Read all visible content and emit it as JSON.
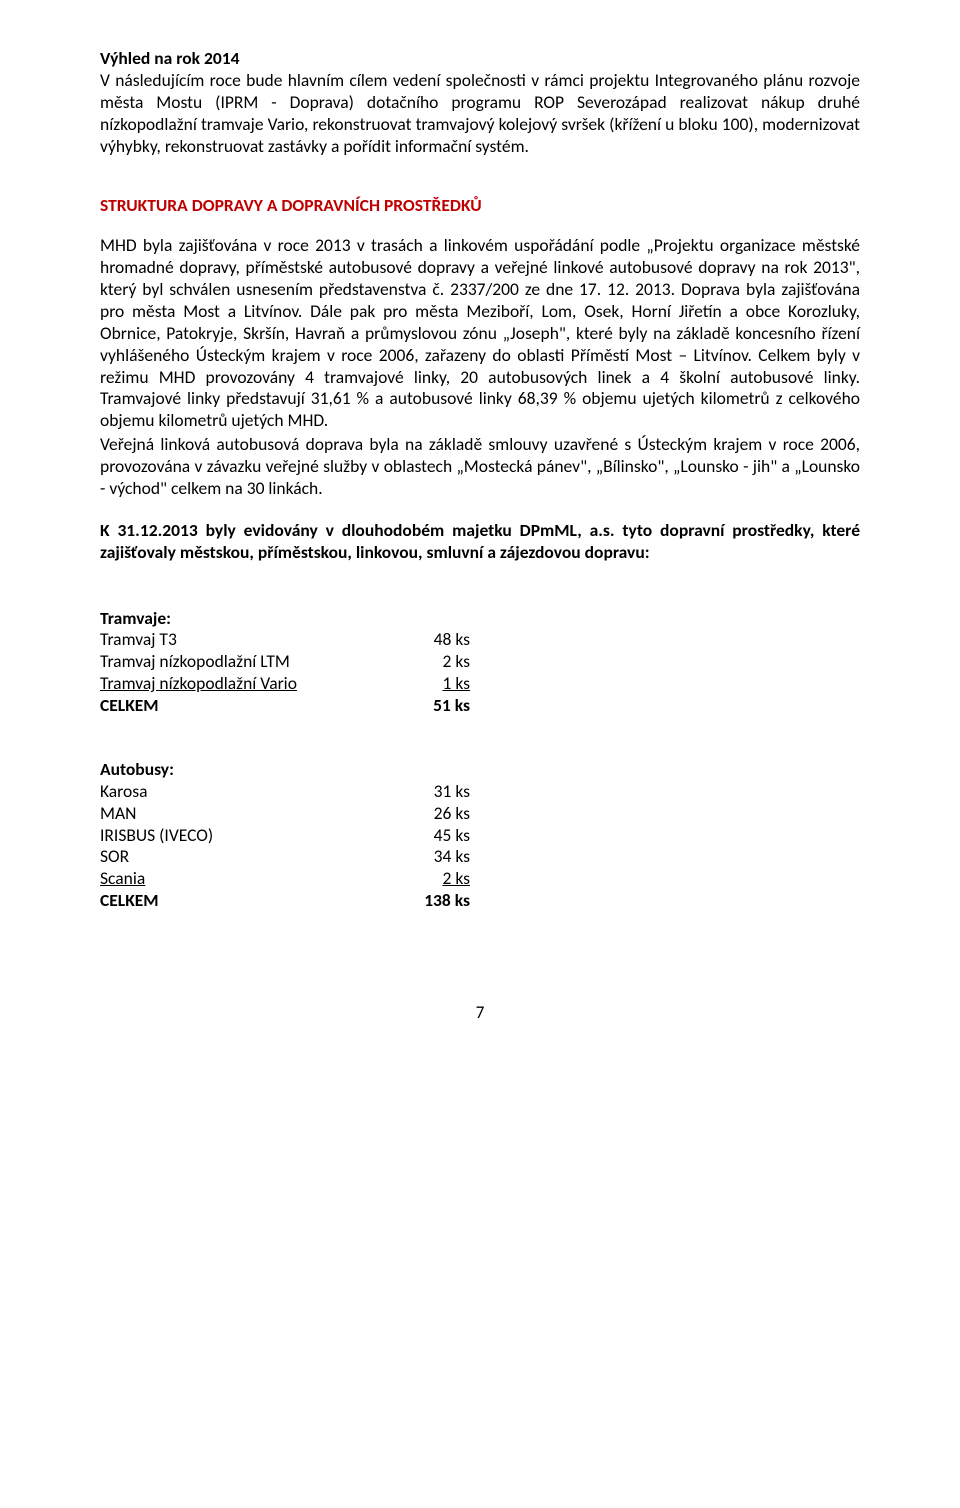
{
  "outlook": {
    "heading": "Výhled na rok 2014",
    "para": "V následujícím roce bude hlavním cílem vedení společnosti v rámci projektu Integrovaného plánu rozvoje města Mostu (IPRM - Doprava) dotačního programu ROP Severozápad realizovat nákup druhé nízkopodlažní tramvaje Vario, rekonstruovat tramvajový kolejový svršek (křížení u bloku 100), modernizovat výhybky, rekonstruovat zastávky a pořídit informační systém."
  },
  "structure": {
    "heading": "STRUKTURA DOPRAVY A DOPRAVNÍCH PROSTŘEDKŮ",
    "para1": "MHD byla zajišťována v roce 2013 v trasách a linkovém uspořádání podle „Projektu organizace městské hromadné dopravy, příměstské autobusové dopravy a veřejné linkové autobusové dopravy na rok 2013\", který byl schválen usnesením představenstva č. 2337/200 ze dne 17. 12. 2013. Doprava byla zajišťována pro města Most a Litvínov. Dále pak pro města Meziboří, Lom, Osek, Horní Jiřetín a obce Korozluky, Obrnice, Patokryje, Skršín, Havraň a průmyslovou zónu „Joseph\", které byly na základě koncesního řízení vyhlášeného Ústeckým krajem v roce 2006, zařazeny do oblasti Příměstí  Most – Litvínov. Celkem byly v režimu MHD provozovány 4 tramvajové linky, 20 autobusových linek a 4 školní autobusové linky. Tramvajové linky představují 31,61 % a autobusové linky 68,39 % objemu ujetých kilometrů z celkového objemu kilometrů ujetých MHD.",
    "para2": "Veřejná linková autobusová doprava byla na základě smlouvy uzavřené s Ústeckým krajem v roce 2006, provozována v závazku veřejné služby v oblastech „Mostecká pánev\", „Bílinsko\", „Lounsko - jih\" a „Lounsko - východ\" celkem na 30 linkách."
  },
  "inventory": {
    "lead_bold": "K 31.12.2013 byly evidovány v dlouhodobém majetku DPmML, a.s. tyto dopravní prostředky",
    "lead_rest": ", které zajišťovaly městskou, příměstskou, linkovou, smluvní a zájezdovou dopravu:"
  },
  "trams": {
    "heading": "Tramvaje:",
    "rows": [
      {
        "label": "Tramvaj  T3",
        "value": "48 ks",
        "underline": false
      },
      {
        "label": "Tramvaj nízkopodlažní LTM",
        "value": "2 ks",
        "underline": false
      },
      {
        "label": "Tramvaj nízkopodlažní Vario",
        "value": "1 ks",
        "underline": true
      }
    ],
    "total_label": "CELKEM",
    "total_value": "51 ks"
  },
  "buses": {
    "heading": "Autobusy:",
    "rows": [
      {
        "label": "Karosa",
        "value": "31 ks",
        "underline": false
      },
      {
        "label": "MAN",
        "value": "26 ks",
        "underline": false
      },
      {
        "label": "IRISBUS (IVECO)",
        "value": "45 ks",
        "underline": false
      },
      {
        "label": "SOR",
        "value": "34 ks",
        "underline": false
      },
      {
        "label": "Scania",
        "value": "2 ks",
        "underline": true
      }
    ],
    "total_label": "CELKEM",
    "total_value": "138 ks"
  },
  "page_number": "7",
  "colors": {
    "heading_red": "#c00000",
    "text": "#000000",
    "background": "#ffffff"
  }
}
